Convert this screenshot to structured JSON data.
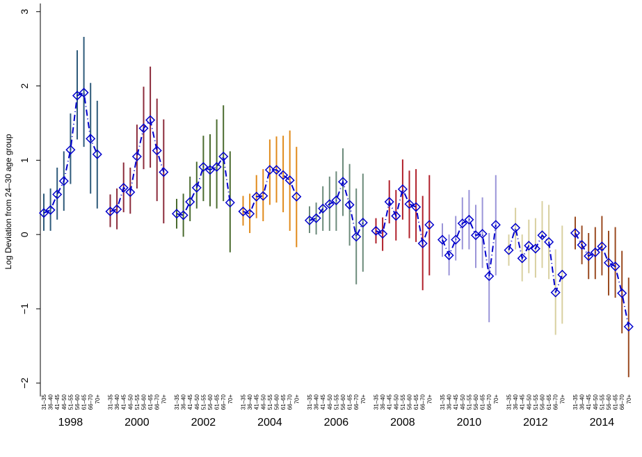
{
  "chart_data": {
    "type": "errorbar",
    "y_label": "Log Deviation from 24–30 age group",
    "categories": [
      "31–35",
      "36–40",
      "41–45",
      "46–50",
      "51–55",
      "56–60",
      "61–65",
      "66–70",
      "70+"
    ],
    "ylim": [
      -2.18,
      3.11
    ],
    "yticks": [
      {
        "value": -2,
        "label": "−2"
      },
      {
        "value": -1,
        "label": "−1"
      },
      0,
      1,
      2,
      3
    ],
    "marker_color": "#0000cc",
    "series": [
      {
        "name": "1998",
        "color": "#2e5a7a",
        "values": [
          0.29,
          0.33,
          0.54,
          0.72,
          1.14,
          1.87,
          1.91,
          1.29,
          1.08
        ],
        "lower": [
          0.05,
          0.05,
          0.2,
          0.32,
          0.68,
          1.28,
          1.18,
          0.55,
          0.35
        ],
        "upper": [
          0.55,
          0.62,
          0.9,
          1.12,
          1.63,
          2.48,
          2.66,
          2.04,
          1.8
        ]
      },
      {
        "name": "2000",
        "color": "#8b2a3a",
        "values": [
          0.31,
          0.34,
          0.63,
          0.57,
          1.05,
          1.43,
          1.54,
          1.13,
          0.84
        ],
        "lower": [
          0.1,
          0.07,
          0.3,
          0.28,
          0.62,
          0.88,
          0.9,
          0.45,
          0.15
        ],
        "upper": [
          0.54,
          0.62,
          0.97,
          0.9,
          1.48,
          1.99,
          2.26,
          1.83,
          1.55
        ]
      },
      {
        "name": "2002",
        "color": "#4a6b2e",
        "values": [
          0.28,
          0.26,
          0.44,
          0.63,
          0.91,
          0.87,
          0.91,
          1.05,
          0.43
        ],
        "lower": [
          0.08,
          -0.03,
          0.18,
          0.35,
          0.45,
          0.38,
          0.35,
          0.45,
          -0.24
        ],
        "upper": [
          0.48,
          0.55,
          0.78,
          0.98,
          1.33,
          1.35,
          1.55,
          1.74,
          1.12
        ]
      },
      {
        "name": "2004",
        "color": "#e08a1a",
        "values": [
          0.31,
          0.28,
          0.51,
          0.52,
          0.87,
          0.87,
          0.8,
          0.73,
          0.51
        ],
        "lower": [
          0.12,
          0.02,
          0.22,
          0.18,
          0.4,
          0.43,
          0.3,
          0.05,
          -0.17
        ],
        "upper": [
          0.52,
          0.55,
          0.8,
          0.88,
          1.28,
          1.32,
          1.33,
          1.4,
          1.18
        ]
      },
      {
        "name": "2006",
        "color": "#6b8a7a",
        "values": [
          0.19,
          0.22,
          0.35,
          0.41,
          0.46,
          0.71,
          0.4,
          -0.03,
          0.16
        ],
        "lower": [
          0.02,
          0.0,
          0.05,
          0.05,
          0.05,
          0.25,
          -0.15,
          -0.67,
          -0.5
        ],
        "upper": [
          0.38,
          0.43,
          0.65,
          0.78,
          0.85,
          1.16,
          0.95,
          0.62,
          0.82
        ]
      },
      {
        "name": "2008",
        "color": "#b0202a",
        "values": [
          0.05,
          0.01,
          0.44,
          0.25,
          0.61,
          0.41,
          0.37,
          -0.12,
          0.13
        ],
        "lower": [
          -0.12,
          -0.22,
          0.15,
          -0.08,
          0.2,
          -0.05,
          -0.1,
          -0.75,
          -0.55
        ],
        "upper": [
          0.22,
          0.23,
          0.73,
          0.6,
          1.01,
          0.86,
          0.88,
          0.52,
          0.8
        ]
      },
      {
        "name": "2010",
        "color": "#9a94d8",
        "values": [
          -0.07,
          -0.28,
          -0.07,
          0.15,
          0.2,
          -0.01,
          0.01,
          -0.56,
          0.13
        ],
        "lower": [
          -0.3,
          -0.55,
          -0.35,
          -0.2,
          -0.2,
          -0.45,
          -0.45,
          -1.18,
          -0.55
        ],
        "upper": [
          0.15,
          0.0,
          0.25,
          0.5,
          0.6,
          0.4,
          0.5,
          0.02,
          0.8
        ]
      },
      {
        "name": "2012",
        "color": "#d8d0a0",
        "values": [
          -0.21,
          0.09,
          -0.32,
          -0.15,
          -0.19,
          -0.01,
          -0.1,
          -0.78,
          -0.54
        ],
        "lower": [
          -0.42,
          -0.2,
          -0.63,
          -0.52,
          -0.58,
          -0.45,
          -0.6,
          -1.35,
          -1.2
        ],
        "upper": [
          0.0,
          0.36,
          0.0,
          0.2,
          0.22,
          0.45,
          0.4,
          -0.2,
          0.12
        ]
      },
      {
        "name": "2014",
        "color": "#9a4a20",
        "values": [
          0.02,
          -0.14,
          -0.29,
          -0.24,
          -0.16,
          -0.38,
          -0.43,
          -0.79,
          -1.24
        ],
        "lower": [
          -0.2,
          -0.4,
          -0.6,
          -0.6,
          -0.55,
          -0.82,
          -0.85,
          -1.33,
          -1.92
        ],
        "upper": [
          0.24,
          0.12,
          0.02,
          0.1,
          0.25,
          0.05,
          0.1,
          -0.22,
          -0.58
        ]
      }
    ]
  }
}
